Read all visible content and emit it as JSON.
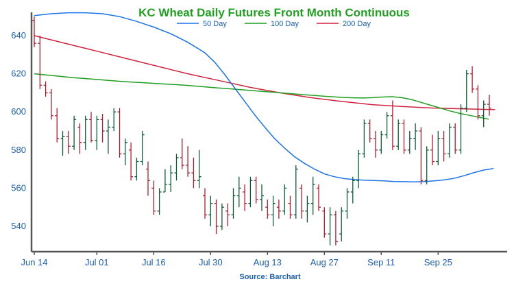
{
  "chart_data": {
    "type": "ohlc",
    "title": "KC Wheat Daily Futures Front Month Continuous",
    "source": "Source: Barchart",
    "ylim": [
      527,
      652
    ],
    "yticks": [
      540,
      560,
      580,
      600,
      620,
      640
    ],
    "xticks": [
      "Jun 14",
      "Jul 01",
      "Jul 16",
      "Jul 30",
      "Aug 13",
      "Aug 27",
      "Sep 11",
      "Sep 25"
    ],
    "xtick_index": [
      0,
      11,
      21,
      31,
      41,
      51,
      61,
      71
    ],
    "colors": {
      "up": "#0a5c36",
      "down": "#b01c2e",
      "ma50": "#1a73e8",
      "ma100": "#1f9e1f",
      "ma200": "#d0213f",
      "axis": "#555555",
      "title": "#22a022",
      "text": "#1a5fb4"
    },
    "legend": [
      {
        "name": "50 Day",
        "color": "#1a73e8"
      },
      {
        "name": "100 Day",
        "color": "#1f9e1f"
      },
      {
        "name": "200 Day",
        "color": "#d0213f"
      }
    ],
    "bars": [
      [
        648,
        650,
        634,
        636
      ],
      [
        636,
        640,
        612,
        614
      ],
      [
        614,
        616,
        608,
        610
      ],
      [
        610,
        612,
        596,
        598
      ],
      [
        598,
        602,
        584,
        586
      ],
      [
        586,
        590,
        577,
        587
      ],
      [
        587,
        590,
        578,
        582
      ],
      [
        582,
        598,
        580,
        596
      ],
      [
        592,
        594,
        578,
        584
      ],
      [
        584,
        598,
        580,
        596
      ],
      [
        596,
        600,
        584,
        585
      ],
      [
        585,
        598,
        580,
        596
      ],
      [
        596,
        599,
        584,
        590
      ],
      [
        590,
        596,
        578,
        592
      ],
      [
        592,
        602,
        590,
        600
      ],
      [
        600,
        602,
        576,
        578
      ],
      [
        578,
        586,
        572,
        584
      ],
      [
        580,
        584,
        564,
        566
      ],
      [
        566,
        576,
        564,
        574
      ],
      [
        574,
        590,
        572,
        588
      ],
      [
        570,
        574,
        556,
        564
      ],
      [
        560,
        564,
        546,
        548
      ],
      [
        548,
        560,
        546,
        558
      ],
      [
        558,
        570,
        558,
        562
      ],
      [
        562,
        572,
        558,
        568
      ],
      [
        568,
        578,
        564,
        576
      ],
      [
        576,
        586,
        570,
        572
      ],
      [
        572,
        582,
        566,
        568
      ],
      [
        568,
        576,
        560,
        564
      ],
      [
        564,
        580,
        560,
        566
      ],
      [
        556,
        560,
        544,
        546
      ],
      [
        546,
        556,
        540,
        552
      ],
      [
        552,
        554,
        536,
        540
      ],
      [
        540,
        552,
        538,
        550
      ],
      [
        548,
        552,
        540,
        546
      ],
      [
        546,
        560,
        544,
        556
      ],
      [
        556,
        566,
        550,
        560
      ],
      [
        558,
        562,
        548,
        552
      ],
      [
        552,
        566,
        550,
        564
      ],
      [
        564,
        566,
        552,
        554
      ],
      [
        554,
        562,
        548,
        556
      ],
      [
        550,
        554,
        544,
        546
      ],
      [
        546,
        556,
        540,
        552
      ],
      [
        550,
        554,
        544,
        548
      ],
      [
        548,
        562,
        546,
        560
      ],
      [
        552,
        556,
        544,
        546
      ],
      [
        546,
        572,
        544,
        570
      ],
      [
        560,
        562,
        544,
        548
      ],
      [
        548,
        556,
        542,
        552
      ],
      [
        552,
        566,
        546,
        562
      ],
      [
        560,
        562,
        548,
        550
      ],
      [
        548,
        550,
        534,
        536
      ],
      [
        536,
        550,
        530,
        546
      ],
      [
        546,
        548,
        530,
        532
      ],
      [
        536,
        550,
        532,
        548
      ],
      [
        548,
        560,
        544,
        558
      ],
      [
        558,
        566,
        552,
        564
      ],
      [
        564,
        580,
        560,
        578
      ],
      [
        578,
        596,
        576,
        594
      ],
      [
        594,
        596,
        584,
        586
      ],
      [
        586,
        590,
        576,
        580
      ],
      [
        580,
        590,
        578,
        588
      ],
      [
        588,
        600,
        586,
        598
      ],
      [
        598,
        606,
        580,
        582
      ],
      [
        582,
        596,
        580,
        594
      ],
      [
        594,
        596,
        578,
        580
      ],
      [
        580,
        590,
        578,
        586
      ],
      [
        586,
        594,
        580,
        590
      ],
      [
        590,
        592,
        562,
        564
      ],
      [
        564,
        582,
        562,
        580
      ],
      [
        580,
        588,
        572,
        574
      ],
      [
        574,
        590,
        572,
        586
      ],
      [
        586,
        590,
        574,
        578
      ],
      [
        578,
        594,
        576,
        592
      ],
      [
        592,
        594,
        578,
        580
      ],
      [
        580,
        604,
        578,
        602
      ],
      [
        602,
        622,
        600,
        620
      ],
      [
        620,
        624,
        610,
        612
      ],
      [
        612,
        614,
        596,
        598
      ],
      [
        598,
        606,
        592,
        604
      ],
      [
        604,
        609,
        598,
        602
      ]
    ],
    "ma50": [
      651,
      652,
      652,
      652,
      652,
      652,
      651,
      650,
      648,
      646,
      644,
      642,
      640,
      637,
      634,
      631,
      628,
      625,
      622,
      619,
      616,
      612,
      607,
      602,
      597,
      592,
      587,
      583,
      579,
      576,
      573,
      571,
      569,
      567,
      566,
      565,
      564.5,
      564.3,
      564,
      563.8,
      563.5,
      563.4,
      563.3,
      563.4,
      563.8,
      564.3,
      565.1,
      566.5,
      568.1,
      569.5,
      570.3
    ],
    "ma50_start": 32,
    "ma100": [
      620,
      619.5,
      619,
      618.5,
      618,
      617.6,
      617.2,
      616.8,
      616.4,
      616,
      615.7,
      615.4,
      615.1,
      614.8,
      614.5,
      614.2,
      613.8,
      613.4,
      613,
      612.6,
      612.2,
      611.8,
      611.4,
      611,
      610.6,
      610.2,
      609.8,
      609.4,
      609,
      608.6,
      608.2,
      607.9,
      607.6,
      607.4,
      607.3,
      607.5,
      607.8,
      608,
      607.5,
      606.5,
      605,
      603.5,
      602,
      600.5,
      599.2,
      598.2,
      597.2,
      596.2
    ],
    "ma200": [
      640,
      636,
      632,
      628,
      624,
      620,
      616.5,
      613,
      610,
      607.5,
      605.5,
      603.8,
      602.8,
      602,
      601.6,
      601.2
    ],
    "ma200_step": 5.4
  }
}
